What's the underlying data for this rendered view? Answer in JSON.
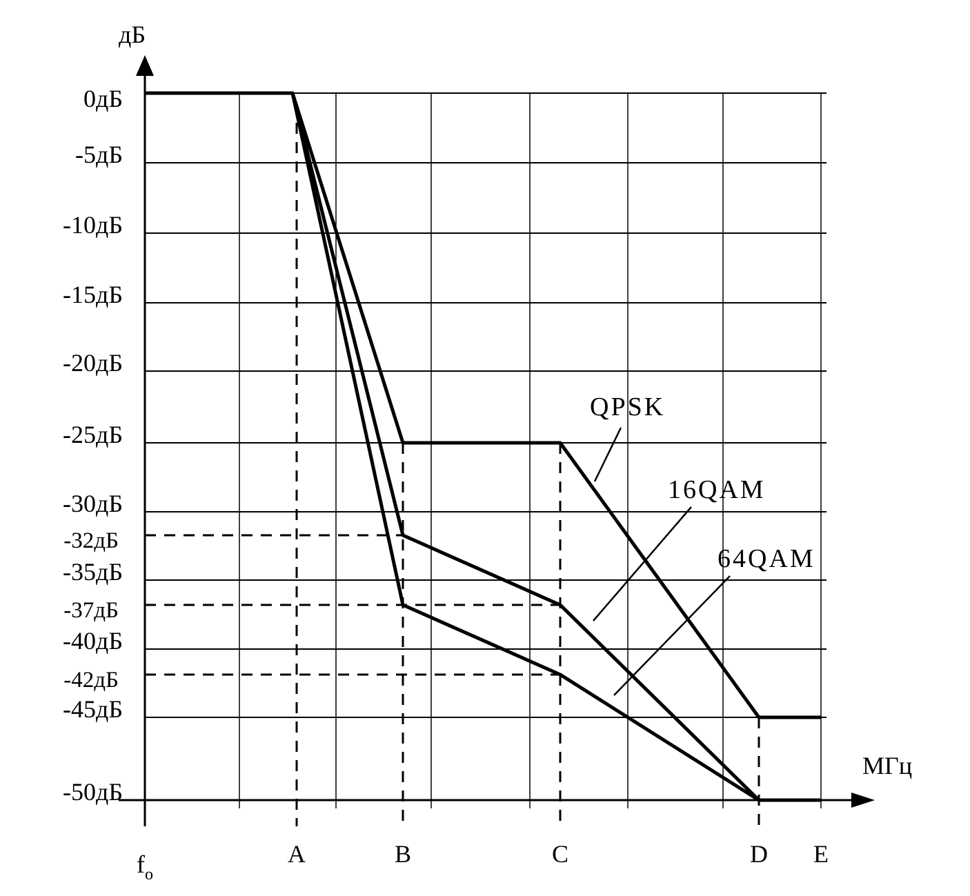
{
  "chart_data": {
    "type": "line",
    "title": "",
    "ylabel": "дБ",
    "xlabel": "МГц",
    "y_ticks": [
      {
        "value": 0,
        "label": "0дБ"
      },
      {
        "value": -5,
        "label": "-5дБ"
      },
      {
        "value": -10,
        "label": "-10дБ"
      },
      {
        "value": -15,
        "label": "-15дБ"
      },
      {
        "value": -20,
        "label": "-20дБ"
      },
      {
        "value": -25,
        "label": "-25дБ"
      },
      {
        "value": -30,
        "label": "-30дБ"
      },
      {
        "value": -32,
        "label": "-32дБ"
      },
      {
        "value": -35,
        "label": "-35дБ"
      },
      {
        "value": -37,
        "label": "-37дБ"
      },
      {
        "value": -40,
        "label": "-40дБ"
      },
      {
        "value": -42,
        "label": "-42дБ"
      },
      {
        "value": -45,
        "label": "-45дБ"
      },
      {
        "value": -50,
        "label": "-50дБ"
      }
    ],
    "x_ticks": [
      {
        "value": 0,
        "label": "f"
      },
      {
        "value": 1.6,
        "label": "A"
      },
      {
        "value": 2.7,
        "label": "B"
      },
      {
        "value": 4.3,
        "label": "C"
      },
      {
        "value": 6.35,
        "label": "D"
      },
      {
        "value": 7.0,
        "label": "E"
      }
    ],
    "x_origin_subscript": "o",
    "ylim": [
      -50,
      0
    ],
    "xlim": [
      0,
      7.0
    ],
    "grid": true,
    "series": [
      {
        "name": "QPSK",
        "x": [
          0,
          1.55,
          2.7,
          4.3,
          6.35,
          7.0
        ],
        "y": [
          0,
          0,
          -25,
          -25,
          -45,
          -45
        ]
      },
      {
        "name": "16QAM",
        "x": [
          1.55,
          2.7,
          4.3,
          6.35
        ],
        "y": [
          0,
          -32,
          -37,
          -50
        ]
      },
      {
        "name": "64QAM",
        "x": [
          1.55,
          2.7,
          4.3,
          6.35,
          7.0
        ],
        "y": [
          0,
          -37,
          -42,
          -50,
          -50
        ]
      }
    ]
  }
}
